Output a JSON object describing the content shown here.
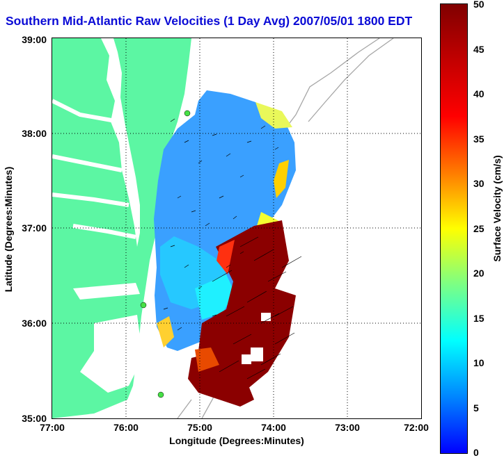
{
  "title": "Southern Mid-Atlantic Raw Velocities (1 Day Avg) 2007/05/01 1800 EDT",
  "xlabel": "Longitude (Degrees:Minutes)",
  "ylabel": "Latitude (Degrees:Minutes)",
  "colorbar_label": "Surface Velocity (cm/s)",
  "x_ticks": [
    "77:00",
    "76:00",
    "75:00",
    "74:00",
    "73:00",
    "72:00"
  ],
  "y_ticks": [
    "39:00",
    "38:00",
    "37:00",
    "36:00",
    "35:00"
  ],
  "colorbar_ticks": [
    "0",
    "5",
    "10",
    "15",
    "20",
    "25",
    "30",
    "35",
    "40",
    "45",
    "50"
  ],
  "colors": {
    "land": "#5cf6a3",
    "title": "#0b0bd6",
    "velocity_low": "#3aa0ff",
    "velocity_mid": "#f0ff20",
    "velocity_high": "#8b0000"
  },
  "map": {
    "projection": "lon/lat",
    "lon_range": [
      -77,
      -72
    ],
    "lat_range": [
      35,
      39
    ],
    "grid": true,
    "vector_field": "surface current arrows",
    "bathymetry_contours": true,
    "site_markers": 3
  }
}
